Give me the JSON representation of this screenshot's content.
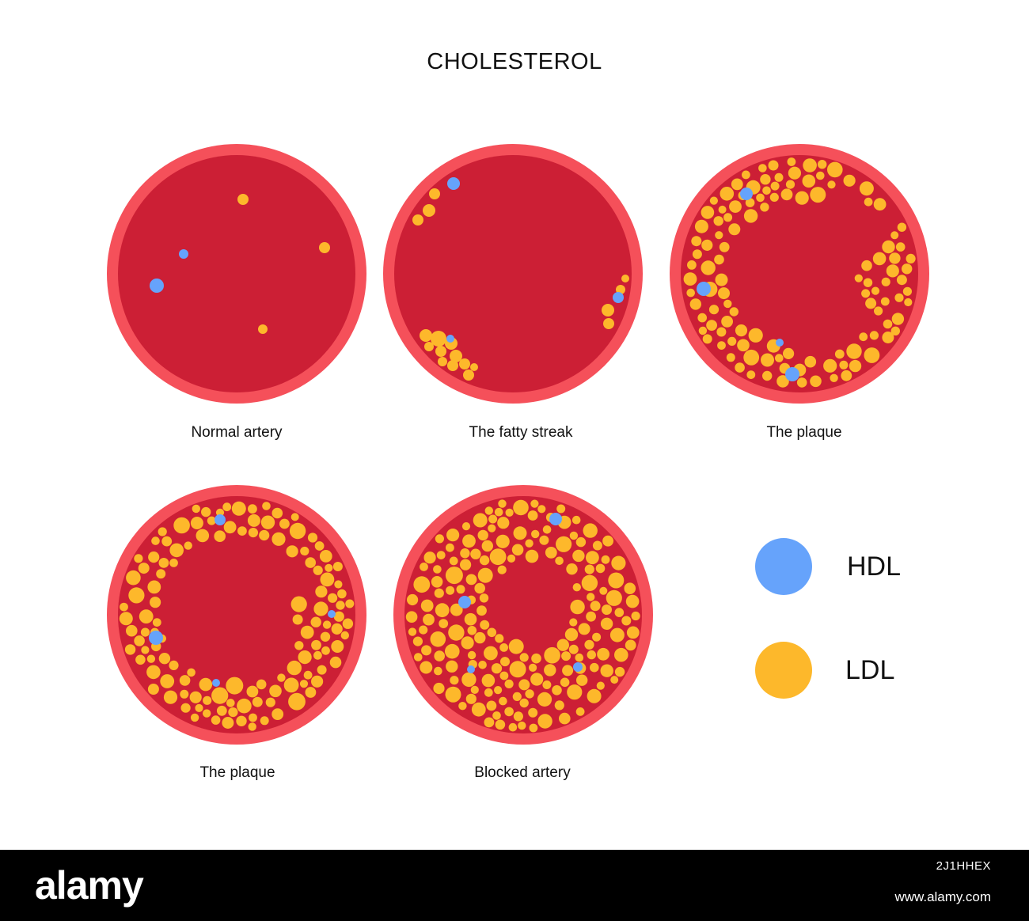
{
  "title": "CHOLESTEROL",
  "colors": {
    "outer_wall": "#f5505a",
    "lumen": "#cc1f35",
    "hdl": "#66a3fb",
    "ldl": "#fdb82b"
  },
  "panels": [
    {
      "caption": "Normal artery",
      "stage": "normal"
    },
    {
      "caption": "The fatty streak",
      "stage": "fatty-streak"
    },
    {
      "caption": "The plaque",
      "stage": "plaque-early"
    },
    {
      "caption": "The plaque",
      "stage": "plaque-advanced"
    },
    {
      "caption": "Blocked artery",
      "stage": "blocked"
    }
  ],
  "legend": {
    "hdl": "HDL",
    "ldl": "LDL"
  },
  "footer": {
    "brand": "alamy",
    "image_id": "2J1HHEX",
    "url": "www.alamy.com"
  }
}
